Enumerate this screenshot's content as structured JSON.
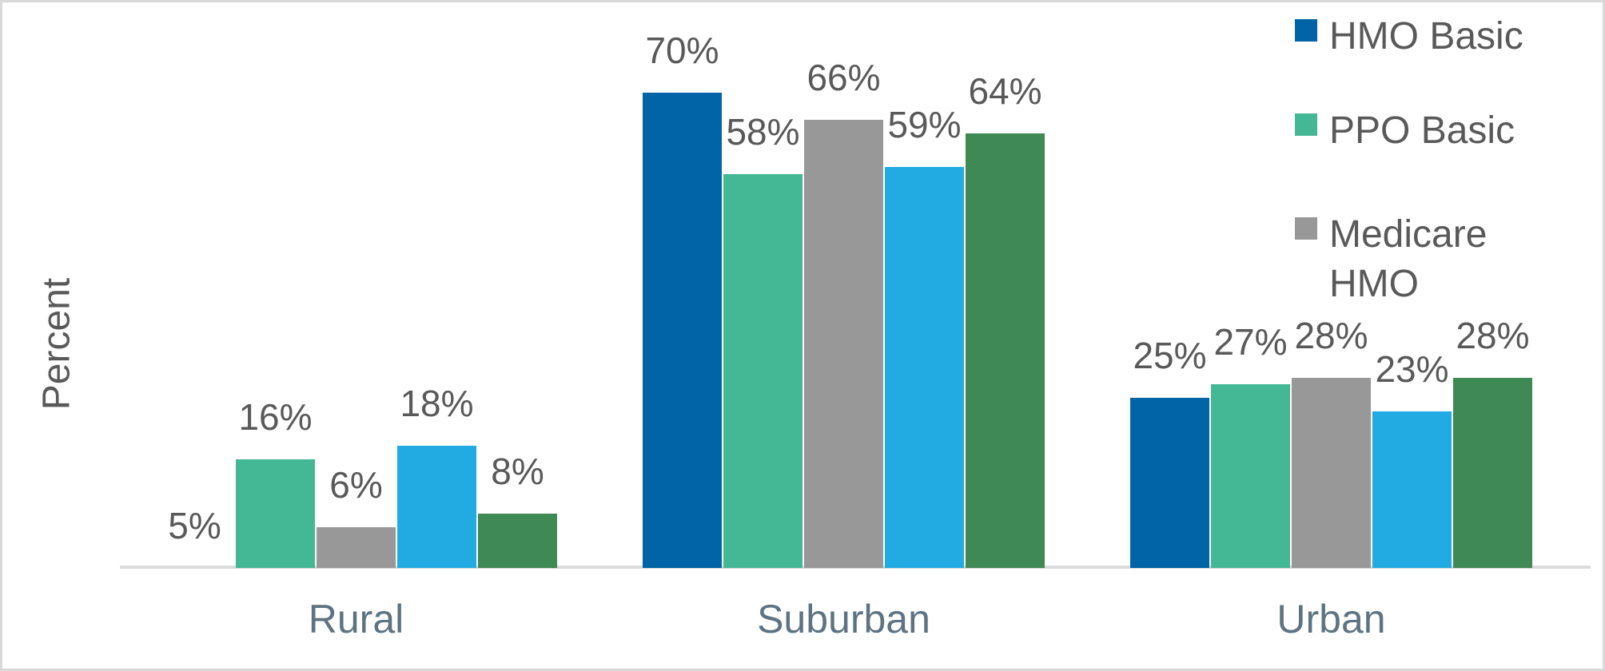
{
  "chart_data": {
    "type": "bar",
    "title": "",
    "xlabel": "",
    "ylabel": "Percent",
    "categories": [
      "Rural",
      "Suburban",
      "Urban"
    ],
    "series": [
      {
        "name": "HMO Basic",
        "color": "#0064A6",
        "values": [
          5,
          70,
          25
        ],
        "in_legend": true
      },
      {
        "name": "PPO Basic",
        "color": "#44B794",
        "values": [
          16,
          58,
          27
        ],
        "in_legend": true
      },
      {
        "name": "Medicare HMO",
        "color": "#989898",
        "values": [
          6,
          66,
          28
        ],
        "in_legend": true
      },
      {
        "name": null,
        "color": "#22ABE2",
        "values": [
          18,
          59,
          23
        ],
        "in_legend": false
      },
      {
        "name": null,
        "color": "#3F8955",
        "values": [
          8,
          64,
          28
        ],
        "in_legend": false
      }
    ],
    "data_labels": {
      "format": "{value}%",
      "color": "#595959"
    },
    "invisible_bars": [
      {
        "series_index": 0,
        "category": "Rural",
        "note": "labeled 5% but no bar is drawn"
      }
    ],
    "legend": {
      "position": "top-right",
      "visible_items": [
        "HMO Basic",
        "PPO Basic",
        "Medicare HMO"
      ]
    },
    "axis": {
      "gridlines": false,
      "y_ticks_visible": false,
      "baseline_color": "#DBDBDB",
      "ylim": [
        0,
        70
      ]
    },
    "category_label_color": "#5D7382"
  }
}
